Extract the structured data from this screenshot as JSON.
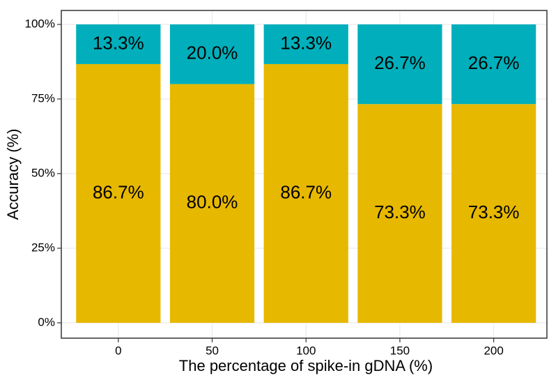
{
  "chart_data": {
    "type": "stacked_bar",
    "x_label": "The percentage of spike-in gDNA (%)",
    "y_label": "Accuracy (%)",
    "categories": [
      "0",
      "50",
      "100",
      "150",
      "200"
    ],
    "series": [
      {
        "color": "#E7B800",
        "values": [
          86.7,
          80.0,
          86.7,
          73.3,
          73.3
        ],
        "value_labels": [
          "86.7%",
          "80.0%",
          "86.7%",
          "73.3%",
          "73.3%"
        ]
      },
      {
        "color": "#00AFBB",
        "values": [
          13.3,
          20.0,
          13.3,
          26.7,
          26.7
        ],
        "value_labels": [
          "13.3%",
          "20.0%",
          "13.3%",
          "26.7%",
          "26.7%"
        ]
      }
    ],
    "ylim": [
      0,
      100
    ],
    "yticks": [
      {
        "value": 0,
        "label": "0%"
      },
      {
        "value": 25,
        "label": "25%"
      },
      {
        "value": 50,
        "label": "50%"
      },
      {
        "value": 75,
        "label": "75%"
      },
      {
        "value": 100,
        "label": "100%"
      }
    ],
    "grid": true
  }
}
